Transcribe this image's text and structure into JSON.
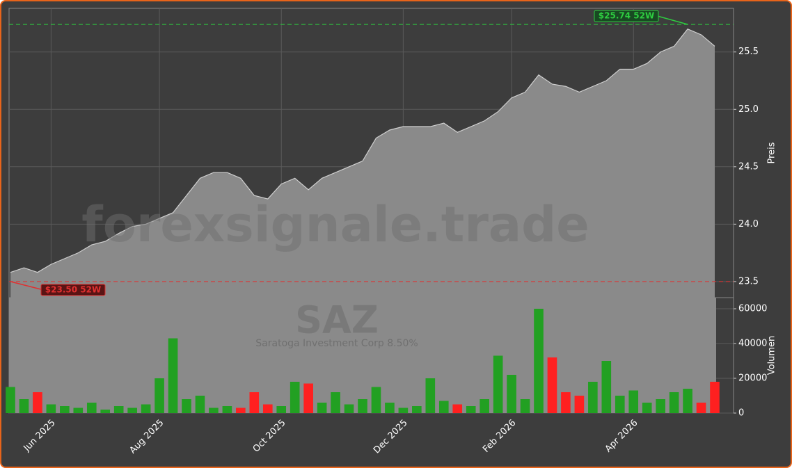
{
  "chart_data": [
    {
      "type": "area",
      "watermark": "forexsignale.trade",
      "y_label": "Preis",
      "series": [
        {
          "name": "SAZ",
          "color": "#8a8a8a",
          "line_color": "#d0d0d0",
          "values": [
            23.58,
            23.62,
            23.58,
            23.65,
            23.7,
            23.75,
            23.82,
            23.85,
            23.92,
            23.98,
            24.0,
            24.05,
            24.1,
            24.25,
            24.4,
            24.45,
            24.45,
            24.4,
            24.25,
            24.22,
            24.35,
            24.4,
            24.3,
            24.4,
            24.45,
            24.5,
            24.55,
            24.75,
            24.82,
            24.85,
            24.85,
            24.85,
            24.88,
            24.8,
            24.85,
            24.9,
            24.98,
            25.1,
            25.15,
            25.3,
            25.22,
            25.2,
            25.15,
            25.2,
            25.25,
            25.35,
            25.35,
            25.4,
            25.5,
            25.55,
            25.7,
            25.65,
            25.55
          ]
        }
      ],
      "ylim": [
        23.36,
        25.88
      ],
      "yticks": [
        23.5,
        {
          "value": 24,
          "label": "24.0"
        },
        24.5,
        {
          "value": 25,
          "label": "25.0"
        },
        25.5
      ],
      "grid": true,
      "hlines": [
        {
          "value": 25.74,
          "label": "$25.74 52W",
          "color": "#2ecc40",
          "at": 50
        },
        {
          "value": 23.5,
          "label": "$23.50 52W",
          "color": "#e03030",
          "at": 0
        }
      ]
    },
    {
      "type": "bar",
      "title": "SAZ",
      "subtitle": "Saratoga Investment Corp 8.50%",
      "y_label": "Volumen",
      "categories": [
        null,
        null,
        null,
        "Jun 2025",
        null,
        null,
        null,
        null,
        null,
        null,
        null,
        "Aug 2025",
        null,
        null,
        null,
        null,
        null,
        null,
        null,
        null,
        "Oct 2025",
        null,
        null,
        null,
        null,
        null,
        null,
        null,
        null,
        "Dec 2025",
        null,
        null,
        null,
        null,
        null,
        null,
        null,
        "Feb 2026",
        null,
        null,
        null,
        null,
        null,
        null,
        null,
        null,
        "Apr 2026",
        null,
        null,
        null,
        null,
        null,
        null
      ],
      "series": [
        {
          "name": "Volumen",
          "up_color": "#22a022",
          "down_color": "#ff2020",
          "values": [
            15000,
            8000,
            12000,
            5000,
            4000,
            3000,
            6000,
            2000,
            4000,
            3000,
            5000,
            20000,
            43000,
            8000,
            10000,
            3000,
            4000,
            3000,
            12000,
            5000,
            4000,
            18000,
            17000,
            6000,
            12000,
            5000,
            8000,
            15000,
            6000,
            3000,
            4000,
            20000,
            7000,
            5000,
            4000,
            8000,
            33000,
            22000,
            8000,
            60000,
            32000,
            12000,
            10000,
            18000,
            30000,
            10000,
            13000,
            6000,
            8000,
            12000,
            14000,
            6000,
            18000
          ]
        }
      ],
      "ylim": [
        0,
        66400
      ],
      "yticks": [
        0,
        20000,
        40000,
        60000
      ],
      "grid": true
    }
  ]
}
